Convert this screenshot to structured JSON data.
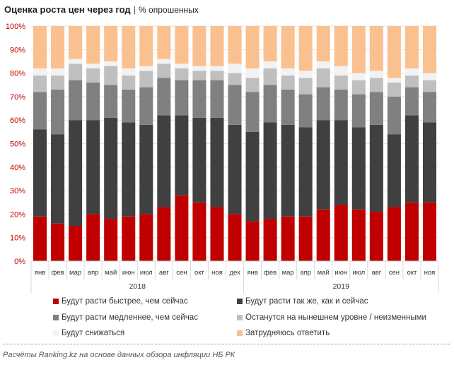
{
  "chart_data": {
    "type": "bar",
    "stacked": true,
    "title": "Оценка роста цен через год",
    "subtitle": "% опрошенных",
    "categories": [
      "янв",
      "фев",
      "мар",
      "апр",
      "май",
      "июн",
      "июл",
      "авг",
      "сен",
      "окт",
      "ноя",
      "дек",
      "янв",
      "фев",
      "мар",
      "апр",
      "май",
      "июн",
      "июл",
      "авг",
      "сен",
      "окт",
      "ноя"
    ],
    "groups": [
      {
        "label": "2018",
        "count": 12
      },
      {
        "label": "2019",
        "count": 11
      }
    ],
    "ylim": [
      0,
      100
    ],
    "yticks": [
      "0%",
      "10%",
      "20%",
      "30%",
      "40%",
      "50%",
      "60%",
      "70%",
      "80%",
      "90%",
      "100%"
    ],
    "series": [
      {
        "name": "Будут расти быстрее, чем сейчас",
        "color": "#c00000",
        "values": [
          19,
          16,
          15,
          20,
          18,
          19,
          20,
          23,
          28,
          25,
          23,
          20,
          17,
          18,
          19,
          19,
          22,
          24,
          22,
          21,
          23,
          25,
          25
        ]
      },
      {
        "name": "Будут расти так же, как и сейчас",
        "color": "#404040",
        "values": [
          37,
          38,
          45,
          40,
          43,
          40,
          38,
          39,
          34,
          36,
          38,
          38,
          38,
          41,
          39,
          38,
          38,
          36,
          35,
          37,
          31,
          37,
          34
        ]
      },
      {
        "name": "Будут расти медленнее, чем сейчас",
        "color": "#808080",
        "values": [
          16,
          19,
          17,
          16,
          14,
          14,
          16,
          16,
          15,
          16,
          16,
          17,
          17,
          16,
          15,
          14,
          14,
          13,
          14,
          14,
          16,
          12,
          13
        ]
      },
      {
        "name": "Останутся на нынешнем уровне / неизменными",
        "color": "#bfbfbf",
        "values": [
          7,
          6,
          7,
          6,
          8,
          6,
          7,
          6,
          5,
          4,
          4,
          5,
          6,
          7,
          6,
          7,
          8,
          6,
          6,
          6,
          6,
          5,
          5
        ]
      },
      {
        "name": "Будут снижаться",
        "color": "#f2f2f2",
        "values": [
          3,
          3,
          2,
          2,
          2,
          3,
          2,
          2,
          2,
          2,
          2,
          4,
          4,
          3,
          3,
          3,
          3,
          4,
          3,
          3,
          2,
          3,
          3
        ]
      },
      {
        "name": "Затрудняюсь ответить",
        "color": "#fac090",
        "values": [
          18,
          18,
          14,
          16,
          15,
          18,
          17,
          14,
          16,
          17,
          17,
          16,
          18,
          15,
          18,
          19,
          15,
          17,
          20,
          19,
          22,
          18,
          20
        ]
      }
    ],
    "legend": "bottom",
    "grid": true
  },
  "source": "Расчёты Ranking.kz на основе данных обзора инфляции НБ РК"
}
